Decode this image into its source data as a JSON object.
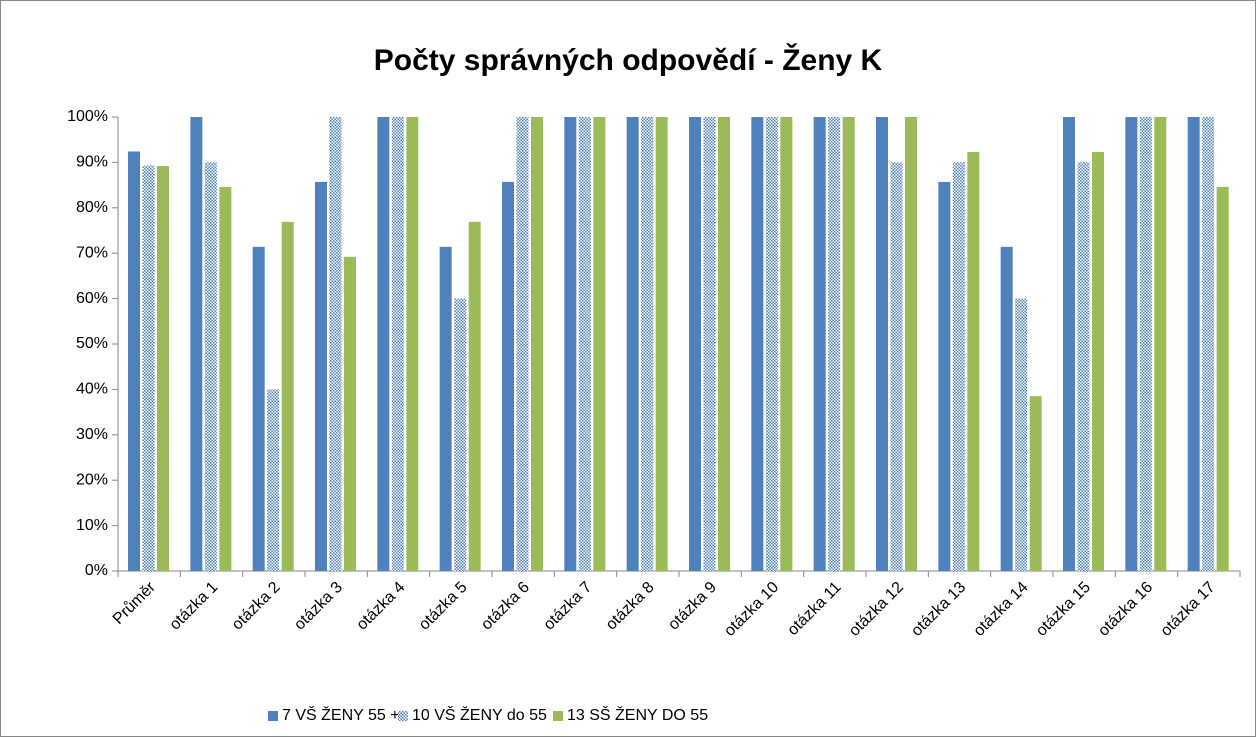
{
  "chart_data": {
    "type": "bar",
    "title": "Počty správných odpovědí - Ženy K",
    "categories": [
      "Průměr",
      "otázka 1",
      "otázka 2",
      "otázka 3",
      "otázka 4",
      "otázka 5",
      "otázka 6",
      "otázka 7",
      "otázka 8",
      "otázka 9",
      "otázka 10",
      "otázka 11",
      "otázka 12",
      "otázka 13",
      "otázka 14",
      "otázka 15",
      "otázka 16",
      "otázka 17"
    ],
    "series": [
      {
        "name": "7 VŠ ŽENY 55 +",
        "color": "#4f81bd",
        "values": [
          92.4,
          100,
          71.4,
          85.7,
          100,
          71.4,
          85.7,
          100,
          100,
          100,
          100,
          100,
          100,
          85.7,
          71.4,
          100,
          100,
          100
        ]
      },
      {
        "name": "10 VŠ ŽENY do 55",
        "color": "#4f81bd",
        "pattern": true,
        "values": [
          89.3,
          90,
          40,
          100,
          100,
          60,
          100,
          100,
          100,
          100,
          100,
          100,
          90,
          90,
          60,
          90,
          100,
          100
        ]
      },
      {
        "name": "13 SŠ ŽENY DO 55",
        "color": "#9bbb59",
        "values": [
          89.2,
          84.6,
          76.9,
          69.2,
          100,
          76.9,
          100,
          100,
          100,
          100,
          100,
          100,
          100,
          92.3,
          38.5,
          92.3,
          100,
          84.6
        ]
      }
    ],
    "ylim": [
      0,
      100
    ],
    "yticks": [
      {
        "value": 0,
        "label": "0%"
      },
      {
        "value": 10,
        "label": "10%"
      },
      {
        "value": 20,
        "label": "20%"
      },
      {
        "value": 30,
        "label": "30%"
      },
      {
        "value": 40,
        "label": "40%"
      },
      {
        "value": 50,
        "label": "50%"
      },
      {
        "value": 60,
        "label": "60%"
      },
      {
        "value": 70,
        "label": "70%"
      },
      {
        "value": 80,
        "label": "80%"
      },
      {
        "value": 90,
        "label": "90%"
      },
      {
        "value": 100,
        "label": "100%"
      }
    ],
    "grid": false,
    "legend": "bottom"
  }
}
